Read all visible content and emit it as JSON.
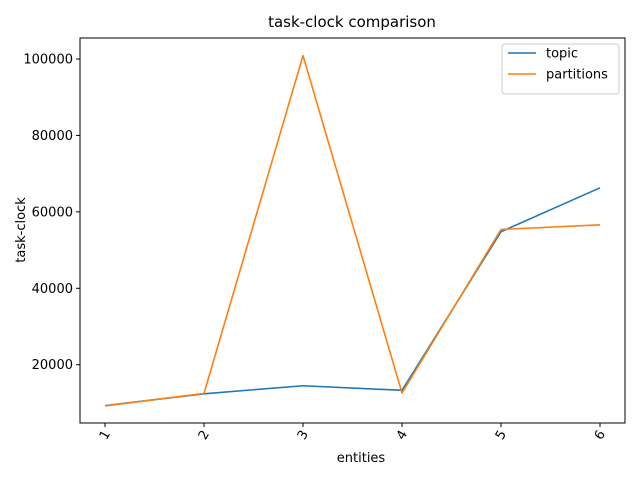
{
  "chart_data": {
    "type": "line",
    "title": "task-clock comparison",
    "xlabel": "entities",
    "ylabel": "task-clock",
    "categories": [
      "1",
      "2",
      "3",
      "4",
      "5",
      "6"
    ],
    "series": [
      {
        "name": "topic",
        "values": [
          9300,
          12400,
          14500,
          13300,
          54800,
          66300
        ],
        "color": "#1f77b4"
      },
      {
        "name": "partitions",
        "values": [
          9200,
          12500,
          100900,
          12600,
          55400,
          56600
        ],
        "color": "#ff7f0e"
      }
    ],
    "yticks": [
      20000,
      40000,
      60000,
      80000,
      100000
    ],
    "ylim": [
      4750,
      105500
    ],
    "grid": false,
    "legend_position": "top-right",
    "xtick_rotation": -60
  }
}
